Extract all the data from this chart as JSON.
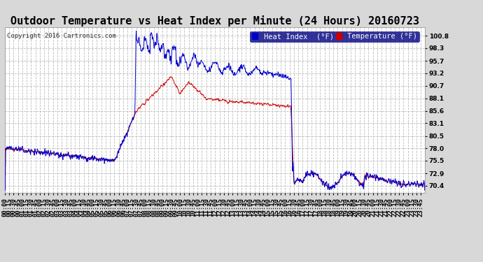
{
  "title": "Outdoor Temperature vs Heat Index per Minute (24 Hours) 20160723",
  "copyright": "Copyright 2016 Cartronics.com",
  "legend_heat": "Heat Index  (°F)",
  "legend_temp": "Temperature (°F)",
  "heat_color": "#0000cc",
  "temp_color": "#cc0000",
  "background_color": "#d8d8d8",
  "plot_bg_color": "#ffffff",
  "grid_color": "#bbbbbb",
  "yticks": [
    70.4,
    72.9,
    75.5,
    78.0,
    80.5,
    83.1,
    85.6,
    88.1,
    90.7,
    93.2,
    95.7,
    98.3,
    100.8
  ],
  "ylim": [
    69.0,
    102.5
  ],
  "title_fontsize": 11,
  "tick_fontsize": 6.5,
  "legend_fontsize": 7.5,
  "copyright_fontsize": 6.5
}
